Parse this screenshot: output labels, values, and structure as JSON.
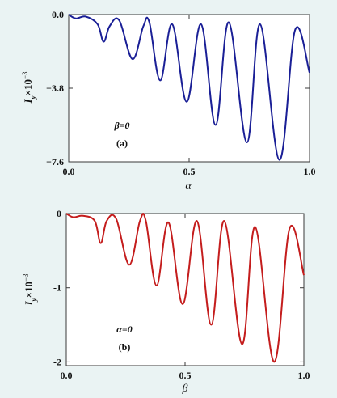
{
  "chart_data": [
    {
      "type": "line",
      "panel_label": "(a)",
      "annotation": "β=0",
      "xlabel": "α",
      "ylabel": {
        "base": "I",
        "sub": "y",
        "mult": "×10",
        "sup": "−3"
      },
      "xlim": [
        0,
        1
      ],
      "ylim": [
        -7.6,
        0.0
      ],
      "xticks": [
        "0.0",
        "0.5",
        "1.0"
      ],
      "xtick_values": [
        0,
        0.5,
        1
      ],
      "yticks": [
        "0.0",
        "−3.8",
        "−7.6"
      ],
      "ytick_values": [
        0,
        -3.8,
        -7.6
      ],
      "grid": false,
      "color": "#1a1f96",
      "series": [
        {
          "x": [
            0,
            0.03,
            0.07,
            0.12,
            0.145,
            0.17,
            0.21,
            0.265,
            0.31,
            0.335,
            0.38,
            0.43,
            0.49,
            0.55,
            0.61,
            0.665,
            0.74,
            0.795,
            0.875,
            0.94,
            1.0
          ],
          "y": [
            0,
            -0.2,
            -0.1,
            -0.5,
            -1.4,
            -0.6,
            -0.3,
            -2.3,
            -0.6,
            -0.4,
            -3.4,
            -0.5,
            -4.5,
            -0.5,
            -5.7,
            -0.4,
            -6.6,
            -0.5,
            -7.5,
            -0.8,
            -3.0
          ]
        }
      ]
    },
    {
      "type": "line",
      "panel_label": "(b)",
      "annotation": "α=0",
      "xlabel": "β",
      "ylabel": {
        "base": "I",
        "sub": "y",
        "mult": "×10",
        "sup": "−3"
      },
      "xlim": [
        0,
        1
      ],
      "ylim": [
        -2.05,
        0.0
      ],
      "xticks": [
        "0.0",
        "0.5",
        "1.0"
      ],
      "xtick_values": [
        0,
        0.5,
        1
      ],
      "yticks": [
        "0",
        "-1",
        "-2"
      ],
      "ytick_values": [
        0,
        -1,
        -2
      ],
      "grid": false,
      "color": "#c41d1d",
      "series": [
        {
          "x": [
            0,
            0.03,
            0.07,
            0.12,
            0.145,
            0.17,
            0.21,
            0.265,
            0.31,
            0.335,
            0.38,
            0.43,
            0.49,
            0.55,
            0.61,
            0.665,
            0.74,
            0.795,
            0.875,
            0.94,
            1.0
          ],
          "y": [
            0,
            -0.05,
            -0.03,
            -0.1,
            -0.4,
            -0.1,
            -0.07,
            -0.69,
            -0.1,
            -0.1,
            -0.97,
            -0.12,
            -1.22,
            -0.1,
            -1.5,
            -0.1,
            -1.76,
            -0.18,
            -2.0,
            -0.2,
            -0.83
          ]
        }
      ]
    }
  ]
}
